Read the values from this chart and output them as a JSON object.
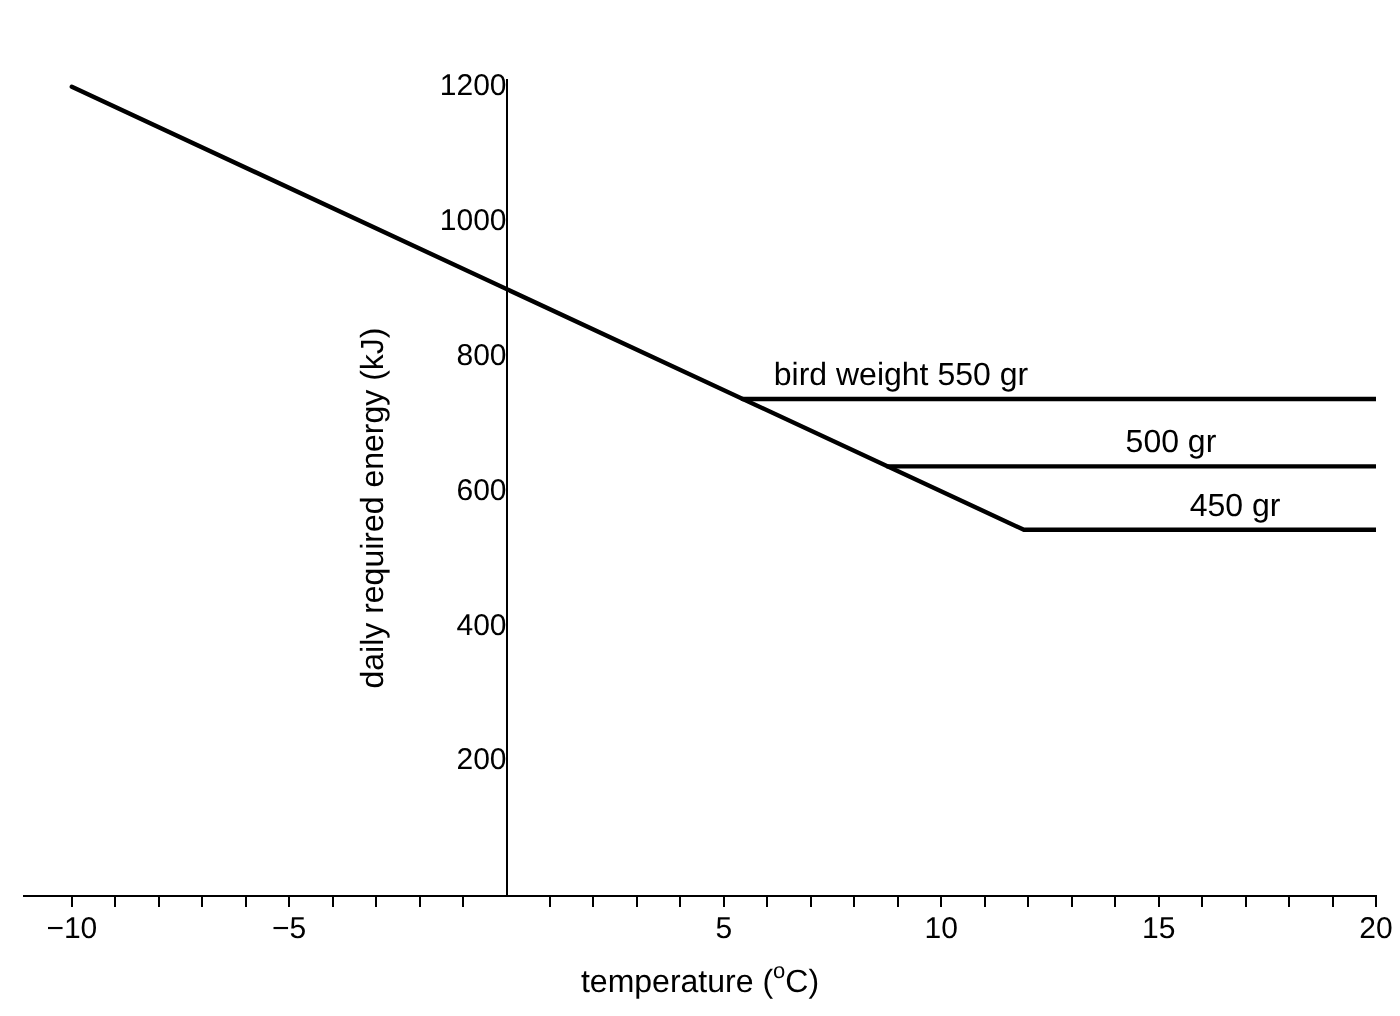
{
  "chart_data": {
    "type": "line",
    "xlabel": "temperature ($^{o}$C)",
    "ylabel": "daily required energy (kJ)",
    "xlim": [
      -11.1,
      20
    ],
    "ylim": [
      0,
      1210
    ],
    "xticks": [
      {
        "value": -10,
        "label": "−10"
      },
      {
        "value": -9,
        "label": null
      },
      {
        "value": -8,
        "label": null
      },
      {
        "value": -7,
        "label": null
      },
      {
        "value": -6,
        "label": null
      },
      {
        "value": -5,
        "label": "−5"
      },
      {
        "value": -4,
        "label": null
      },
      {
        "value": -3,
        "label": null
      },
      {
        "value": -2,
        "label": null
      },
      {
        "value": -1,
        "label": null
      },
      {
        "value": 1,
        "label": null
      },
      {
        "value": 2,
        "label": null
      },
      {
        "value": 3,
        "label": null
      },
      {
        "value": 4,
        "label": null
      },
      5,
      {
        "value": 6,
        "label": null
      },
      {
        "value": 7,
        "label": null
      },
      {
        "value": 8,
        "label": null
      },
      {
        "value": 9,
        "label": null
      },
      10,
      {
        "value": 11,
        "label": null
      },
      {
        "value": 12,
        "label": null
      },
      {
        "value": 13,
        "label": null
      },
      {
        "value": 14,
        "label": null
      },
      15,
      {
        "value": 16,
        "label": null
      },
      {
        "value": 17,
        "label": null
      },
      {
        "value": 18,
        "label": null
      },
      {
        "value": 19,
        "label": null
      },
      20
    ],
    "yticks": [
      200,
      400,
      600,
      800,
      1000,
      1200
    ],
    "series": [
      {
        "name": "bird weight 550 gr",
        "color": "#000000",
        "x": [
          5.43,
          20
        ],
        "values": [
          737,
          737
        ]
      },
      {
        "name": "500 gr",
        "color": "#000000",
        "x": [
          8.77,
          20
        ],
        "values": [
          637,
          637
        ]
      },
      {
        "name": "450 gr",
        "color": "#000000",
        "x": [
          -10,
          11.9,
          20
        ],
        "values": [
          1200,
          543,
          543
        ]
      }
    ],
    "grid": false,
    "legend": false,
    "marker": "none",
    "line_style": "solid"
  }
}
